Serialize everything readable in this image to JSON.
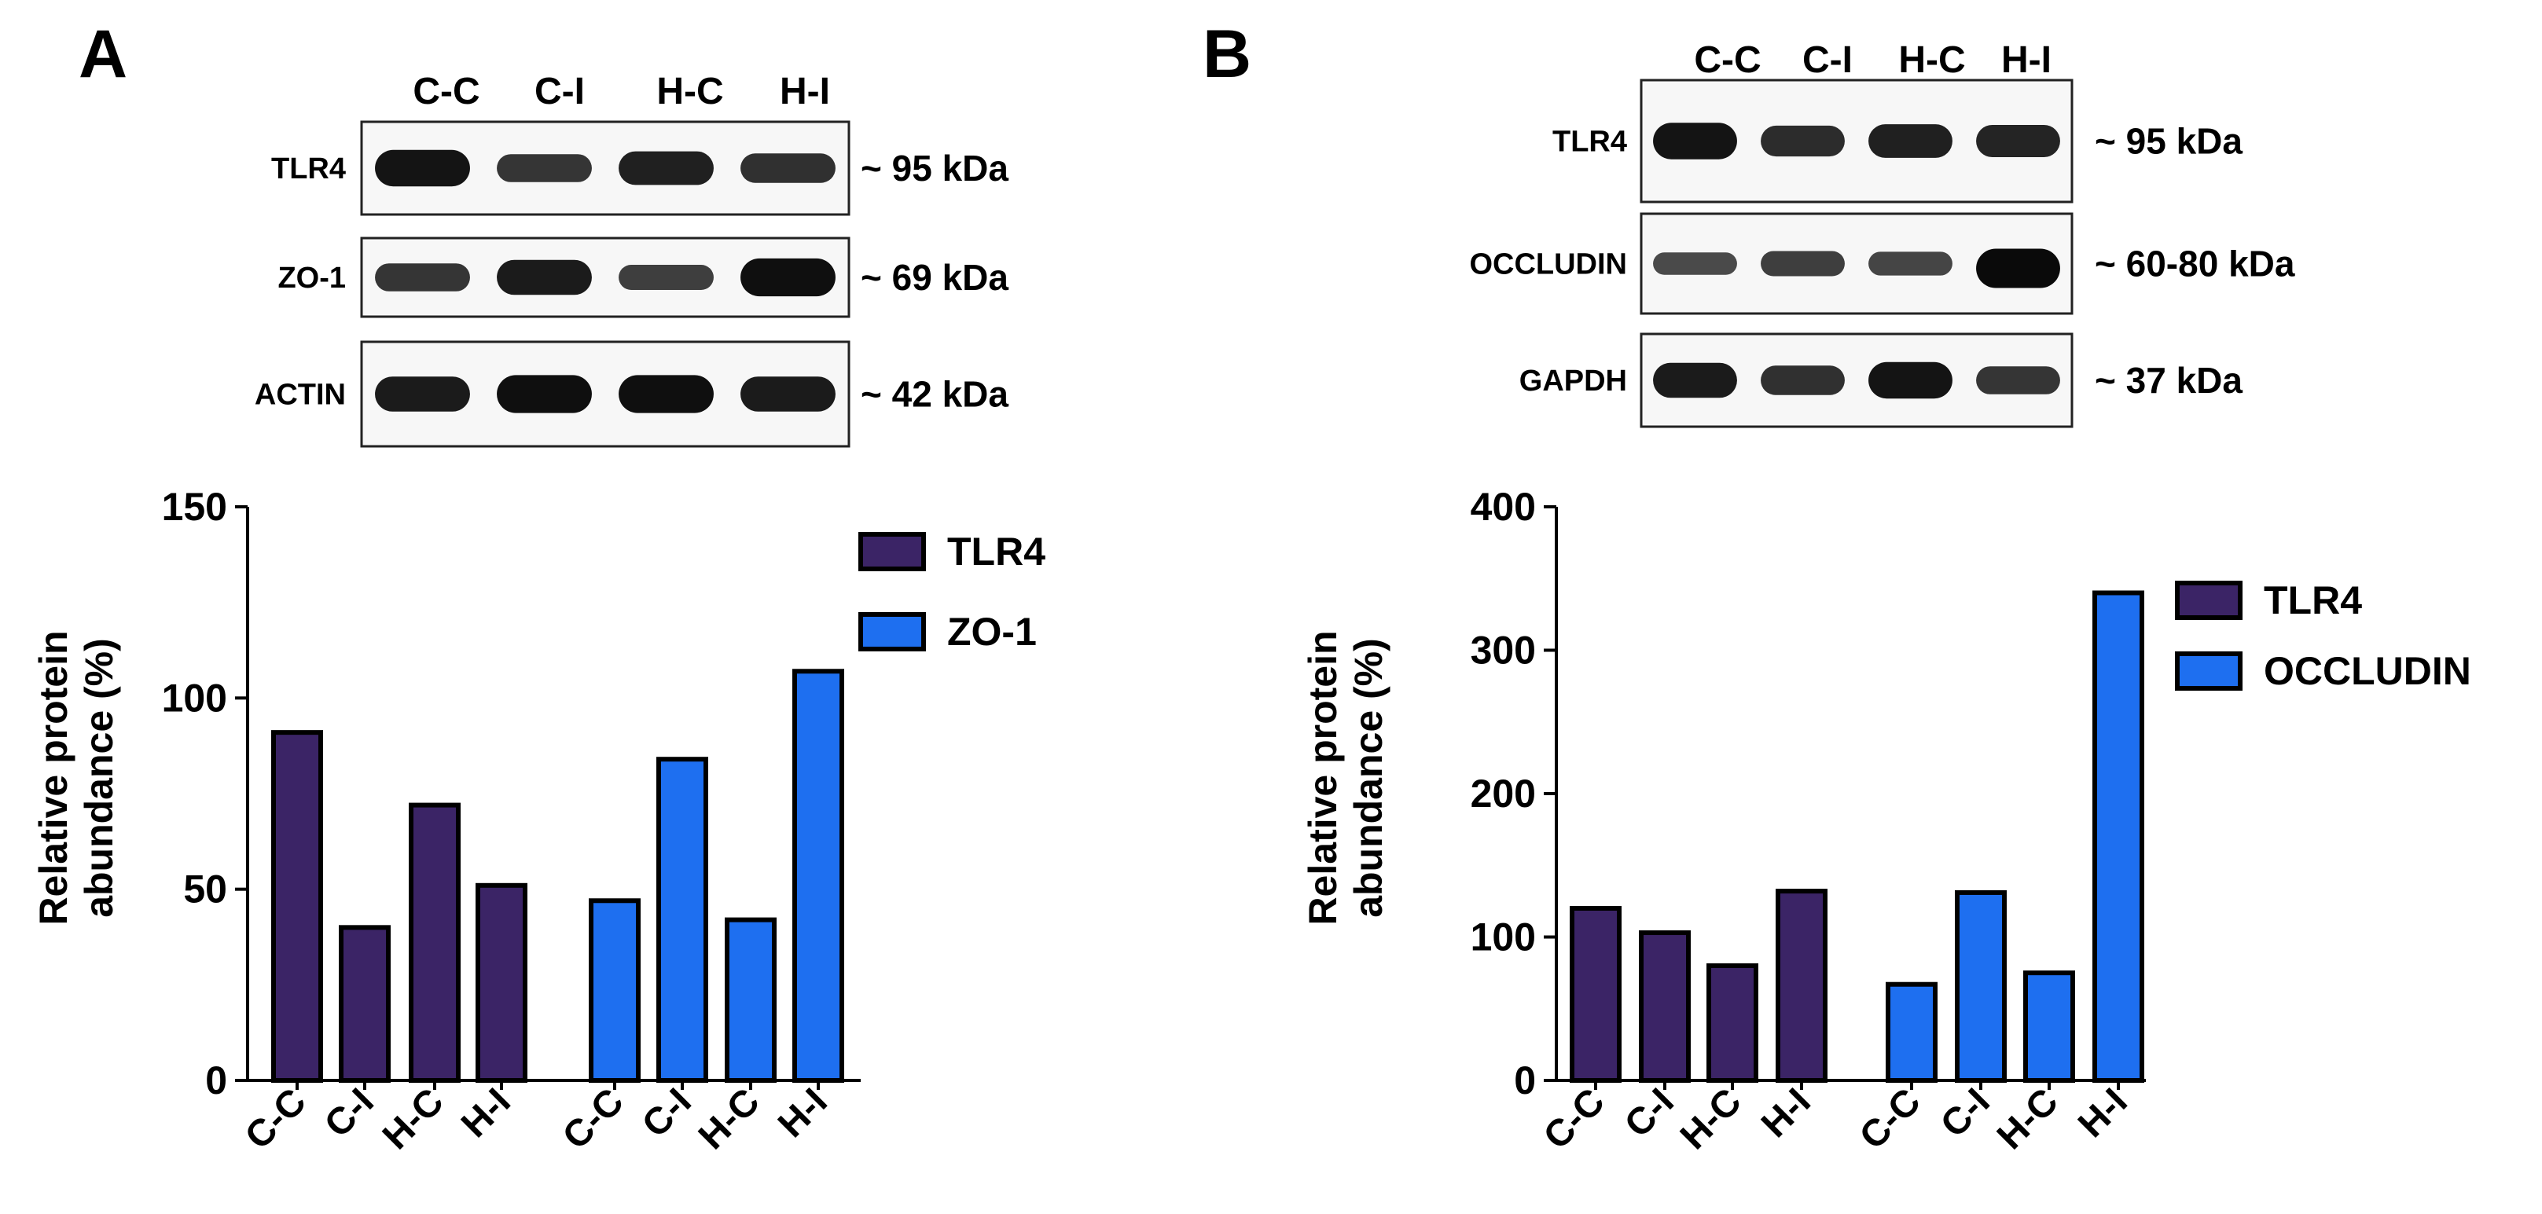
{
  "panels": [
    {
      "letter": "A",
      "lanes": [
        "C-C",
        "C-I",
        "H-C",
        "H-I"
      ],
      "blots": [
        {
          "name": "TLR4",
          "kda": "~ 95 kDa",
          "band_intensity": [
            0.9,
            0.6,
            0.8,
            0.65
          ]
        },
        {
          "name": "ZO-1",
          "kda": "~ 69 kDa",
          "band_intensity": [
            0.6,
            0.85,
            0.5,
            0.95
          ]
        },
        {
          "name": "ACTIN",
          "kda": "~ 42 kDa",
          "band_intensity": [
            0.85,
            0.95,
            0.95,
            0.85
          ]
        }
      ]
    },
    {
      "letter": "B",
      "lanes": [
        "C-C",
        "C-I",
        "H-C",
        "H-I"
      ],
      "blots": [
        {
          "name": "TLR4",
          "kda": "~ 95 kDa",
          "band_intensity": [
            0.9,
            0.7,
            0.8,
            0.75
          ]
        },
        {
          "name": "OCCLUDIN",
          "kda": "~ 60-80 kDa",
          "band_intensity": [
            0.4,
            0.5,
            0.45,
            1.0
          ]
        },
        {
          "name": "GAPDH",
          "kda": "~ 37 kDa",
          "band_intensity": [
            0.85,
            0.65,
            0.9,
            0.6
          ]
        }
      ]
    }
  ],
  "chart_data": [
    {
      "type": "bar",
      "ylabel": "Relative protein abundance (%)",
      "ylim": [
        0,
        150
      ],
      "yticks": [
        0,
        50,
        100,
        150
      ],
      "categories": [
        "C-C",
        "C-I",
        "H-C",
        "H-I"
      ],
      "legend_position": "top-right",
      "series": [
        {
          "name": "TLR4",
          "color": "#3b2466",
          "values": [
            91,
            40,
            72,
            51
          ]
        },
        {
          "name": "ZO-1",
          "color": "#1e6ff0",
          "values": [
            47,
            84,
            42,
            107
          ]
        }
      ]
    },
    {
      "type": "bar",
      "ylabel": "Relative protein abundance (%)",
      "ylim": [
        0,
        400
      ],
      "yticks": [
        0,
        100,
        200,
        300,
        400
      ],
      "categories": [
        "C-C",
        "C-I",
        "H-C",
        "H-I"
      ],
      "legend_position": "top-right",
      "series": [
        {
          "name": "TLR4",
          "color": "#3b2466",
          "values": [
            120,
            103,
            80,
            132
          ]
        },
        {
          "name": "OCCLUDIN",
          "color": "#1e6ff0",
          "values": [
            67,
            131,
            75,
            340
          ]
        }
      ]
    }
  ]
}
